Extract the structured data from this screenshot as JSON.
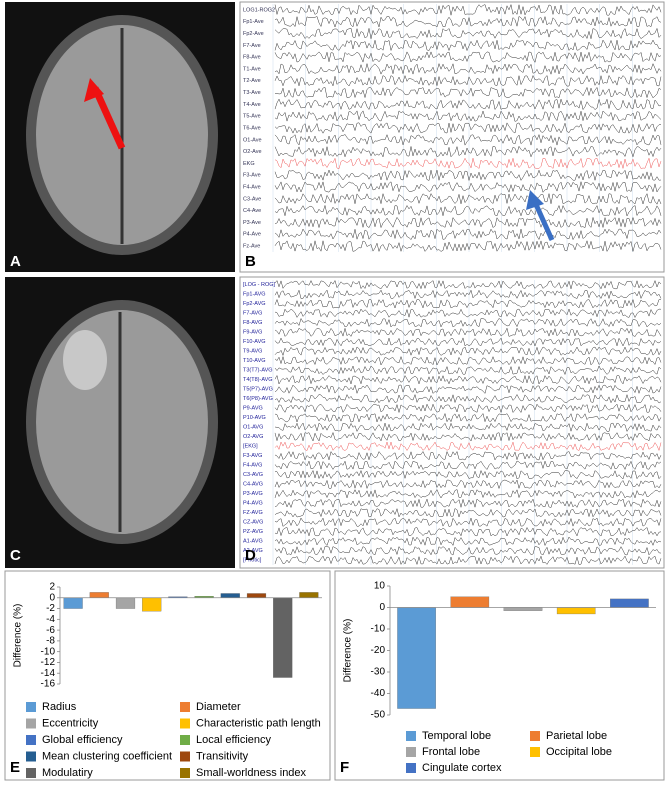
{
  "panel_labels": [
    "A",
    "B",
    "C",
    "D",
    "E",
    "F"
  ],
  "eeg_b_channels": [
    "LOG1-ROG2",
    "Fp1-Ave",
    "Fp2-Ave",
    "F7-Ave",
    "F8-Ave",
    "T1-Ave",
    "T2-Ave",
    "T3-Ave",
    "T4-Ave",
    "T5-Ave",
    "T6-Ave",
    "O1-Ave",
    "O2-Ave",
    "EKG",
    "F3-Ave",
    "F4-Ave",
    "C3-Ave",
    "C4-Ave",
    "P3-Ave",
    "P4-Ave",
    "Fz-Ave"
  ],
  "eeg_d_channels": [
    "[LOG - ROG]",
    "Fp1-AVG",
    "Fp2-AVG",
    "F7-AVG",
    "F8-AVG",
    "F9-AVG",
    "F10-AVG",
    "T9-AVG",
    "T10-AVG",
    "T3(T7)-AVG",
    "T4(T8)-AVG",
    "T5(P7)-AVG",
    "T6(P8)-AVG",
    "P9-AVG",
    "P10-AVG",
    "O1-AVG",
    "O2-AVG",
    "[EKG]",
    "F3-AVG",
    "F4-AVG",
    "C3-AVG",
    "C4-AVG",
    "P3-AVG",
    "P4-AVG",
    "FZ-AVG",
    "CZ-AVG",
    "PZ-AVG",
    "A1-AVG",
    "A2-AVG",
    "[Photic]"
  ],
  "chart_data": [
    {
      "type": "bar",
      "y_label": "Difference (%)",
      "categories": [
        "Radius",
        "Diameter",
        "Eccentricity",
        "Characteristic path length",
        "Global efficiency",
        "Local efficiency",
        "Mean clustering coefficient",
        "Transitivity",
        "Modulatiry",
        "Small-worldness index"
      ],
      "values": [
        -2,
        1,
        -2,
        -2.5,
        0.2,
        0.3,
        0.8,
        0.8,
        -14.8,
        1
      ],
      "colors": [
        "#5b9bd5",
        "#ed7d31",
        "#a5a5a5",
        "#ffc000",
        "#4472c4",
        "#70ad47",
        "#255e91",
        "#9e480e",
        "#636363",
        "#997300"
      ],
      "ylim": [
        -16,
        2
      ],
      "yticks": [
        2,
        0,
        -2,
        -4,
        -6,
        -8,
        -10,
        -12,
        -14,
        -16
      ],
      "grid": false
    },
    {
      "type": "bar",
      "y_label": "Difference (%)",
      "categories": [
        "Temporal lobe",
        "Parietal lobe",
        "Frontal lobe",
        "Occipital lobe",
        "Cingulate cortex"
      ],
      "values": [
        -47,
        5,
        -1.5,
        -3,
        4
      ],
      "colors": [
        "#5b9bd5",
        "#ed7d31",
        "#a5a5a5",
        "#ffc000",
        "#4472c4"
      ],
      "ylim": [
        -50,
        10
      ],
      "yticks": [
        10,
        0,
        -10,
        -20,
        -30,
        -40,
        -50
      ],
      "grid": false
    }
  ]
}
